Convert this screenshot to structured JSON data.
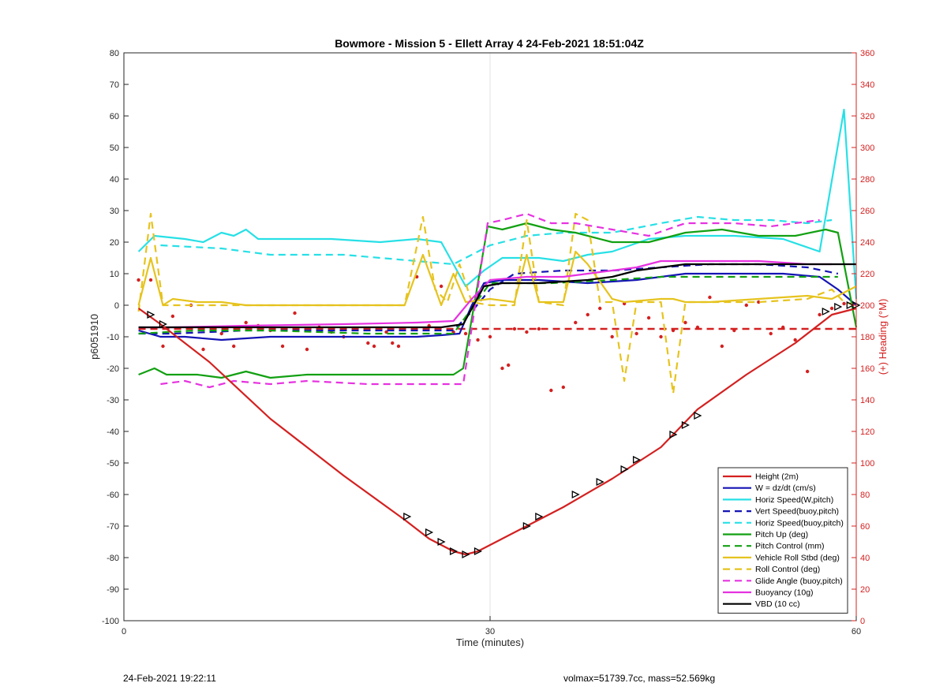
{
  "chart_data": {
    "type": "line",
    "title": "Bowmore - Mission 5 - Ellett Array 4 24-Feb-2021 18:51:04Z",
    "xlabel": "Time (minutes)",
    "ylabel": "p6051910",
    "y2label": "(+) Heading (°M)",
    "xlim": [
      0,
      60
    ],
    "ylim": [
      -100,
      80
    ],
    "y2lim": [
      0,
      360
    ],
    "xticks": [
      0,
      30,
      60
    ],
    "yticks": [
      80,
      70,
      60,
      50,
      40,
      30,
      20,
      10,
      0,
      -10,
      -20,
      -30,
      -40,
      -50,
      -60,
      -70,
      -80,
      -90,
      -100
    ],
    "y2ticks": [
      360,
      340,
      320,
      300,
      280,
      260,
      240,
      220,
      200,
      180,
      160,
      140,
      120,
      100,
      80,
      60,
      40,
      20,
      0
    ],
    "grid": "x at 30",
    "legend_position": "bottom-right",
    "series": [
      {
        "name": "Height (2m)",
        "color": "#d42020",
        "style": "solid",
        "x": [
          1.2,
          3,
          7,
          12,
          18,
          23,
          25,
          27,
          28,
          29,
          30,
          33,
          36,
          40,
          44,
          47,
          51,
          55,
          58,
          60
        ],
        "y": [
          -1,
          -6,
          -18,
          -36,
          -54,
          -68,
          -74,
          -78,
          -79,
          -78,
          -76,
          -70,
          -64,
          -55,
          -45,
          -33,
          -22,
          -12,
          -3,
          -1
        ]
      },
      {
        "name": "W = dz/dt (cm/s)",
        "color": "#1414b4",
        "style": "solid",
        "x": [
          1.2,
          3,
          5,
          8,
          12,
          18,
          24,
          26,
          27.5,
          28.5,
          29.5,
          31,
          34,
          38,
          42,
          46,
          50,
          54,
          57,
          58.5,
          60
        ],
        "y": [
          -8,
          -10,
          -10,
          -11,
          -10,
          -10,
          -10,
          -9.5,
          -9,
          0,
          7,
          8,
          8,
          7,
          8,
          10,
          10,
          10,
          9,
          5,
          0
        ]
      },
      {
        "name": "Horiz Speed(W,pitch)",
        "color": "#27e0e6",
        "style": "solid",
        "x": [
          1.2,
          2.5,
          5,
          6.5,
          8,
          9,
          10,
          11,
          14,
          17,
          21,
          24,
          26,
          28,
          29.5,
          31,
          34,
          36,
          38,
          40,
          43,
          46,
          50,
          54,
          57,
          59,
          60
        ],
        "y": [
          17,
          22,
          21,
          20,
          23,
          22,
          24,
          21,
          21,
          21,
          20,
          21,
          20,
          6,
          11,
          15,
          15,
          14,
          16,
          17,
          21,
          22,
          22,
          21,
          17,
          62,
          2
        ]
      },
      {
        "name": "Vert Speed(buoy,pitch)",
        "color": "#1414b4",
        "style": "dashed",
        "x": [
          1.2,
          4,
          10,
          20,
          27,
          28.5,
          30,
          32,
          36,
          40,
          44,
          48,
          52,
          56,
          58.5
        ],
        "y": [
          -9,
          -9,
          -8,
          -8,
          -8,
          -2,
          5,
          10,
          11,
          11,
          12,
          13,
          13,
          12,
          10
        ]
      },
      {
        "name": "Horiz Speed(buoy,pitch)",
        "color": "#27e0e6",
        "style": "dashed",
        "x": [
          3,
          8,
          12,
          18,
          24,
          27,
          30,
          33,
          36,
          40,
          44,
          47,
          50,
          53,
          56,
          58
        ],
        "y": [
          19,
          18,
          16,
          16,
          14,
          13,
          19,
          22,
          23,
          23,
          26,
          28,
          27,
          27,
          26,
          27
        ]
      },
      {
        "name": "Pitch Up (deg)",
        "color": "#12a012",
        "style": "solid",
        "x": [
          1.2,
          2.5,
          3.5,
          6,
          8,
          10,
          12,
          15,
          18,
          22,
          27,
          27.8,
          29.8,
          31,
          33,
          35,
          37,
          40,
          43,
          46,
          49,
          52,
          55,
          57.5,
          58.5,
          60
        ],
        "y": [
          -22,
          -20,
          -22,
          -22,
          -23,
          -21,
          -23,
          -22,
          -22,
          -22,
          -22,
          -20,
          25,
          24,
          26,
          24,
          23,
          20,
          20,
          23,
          24,
          22,
          22,
          24,
          23,
          -7
        ]
      },
      {
        "name": "Pitch Control (mm)",
        "color": "#12a012",
        "style": "dashed",
        "x": [
          1.2,
          6,
          12,
          20,
          27,
          28.5,
          30,
          35,
          40,
          44,
          50,
          55,
          58.5
        ],
        "y": [
          -9,
          -8,
          -8,
          -9,
          -9,
          -1,
          7,
          7,
          8,
          9,
          9,
          9,
          9
        ]
      },
      {
        "name": "Vehicle Roll Stbd (deg)",
        "color": "#e6c31e",
        "style": "solid",
        "x": [
          1.2,
          2.2,
          3.2,
          4,
          6,
          8,
          10,
          12,
          15,
          18,
          22,
          23,
          24.5,
          26,
          27,
          28,
          30,
          32,
          33,
          34,
          36,
          37,
          38,
          40,
          41,
          44,
          45,
          46,
          48,
          52,
          56,
          58,
          60
        ],
        "y": [
          0,
          15,
          0,
          2,
          1,
          1,
          0,
          0,
          0,
          0,
          0,
          0,
          16,
          0,
          10,
          1,
          2,
          1,
          16,
          1,
          1,
          17,
          13,
          2,
          1,
          2,
          2,
          1,
          1,
          2,
          3,
          2,
          6
        ]
      },
      {
        "name": "Roll Control (deg)",
        "color": "#e6c31e",
        "style": "dashed",
        "x": [
          1.2,
          2.2,
          3.2,
          5,
          8,
          12,
          18,
          22,
          23,
          24.5,
          25.5,
          26.5,
          27.5,
          28.5,
          30,
          32,
          33,
          34,
          36,
          37,
          38,
          39,
          40,
          41,
          42,
          44,
          45,
          46,
          48,
          52,
          56,
          58,
          59,
          60
        ],
        "y": [
          -2,
          29,
          0,
          0,
          0,
          0,
          0,
          0,
          0,
          28,
          5,
          1,
          13,
          1,
          0,
          0,
          27,
          1,
          0,
          29,
          27,
          1,
          1,
          -24,
          1,
          1,
          -28,
          1,
          1,
          1,
          2,
          5,
          1,
          0
        ]
      },
      {
        "name": "Glide Angle (buoy,pitch)",
        "color": "#e632e0",
        "style": "dashed",
        "x": [
          3,
          5,
          7,
          9,
          12,
          15,
          20,
          25,
          27.8,
          29.8,
          31,
          33,
          35,
          37,
          40,
          43,
          46,
          50,
          53,
          57
        ],
        "y": [
          -25,
          -24,
          -26,
          -24,
          -25,
          -24,
          -25,
          -25,
          -25,
          26,
          27,
          29,
          26,
          26,
          24,
          22,
          26,
          26,
          25,
          27
        ]
      },
      {
        "name": "Buoyancy (10g)",
        "color": "#e632e0",
        "style": "solid",
        "x": [
          1.2,
          4,
          10,
          18,
          24,
          27,
          28.5,
          30,
          33,
          36,
          38,
          40,
          42,
          44,
          48,
          52,
          56,
          58
        ],
        "y": [
          -7,
          -7,
          -6.5,
          -6,
          -5.5,
          -5,
          2,
          8,
          9,
          9,
          10,
          11,
          12,
          14,
          14,
          14,
          13,
          13
        ]
      },
      {
        "name": "VBD (10 cc)",
        "color": "#000000",
        "style": "solid",
        "x": [
          1.2,
          4,
          10,
          20,
          26,
          27.8,
          29.5,
          31,
          34,
          38,
          40,
          42,
          44,
          46,
          50,
          56,
          60
        ],
        "y": [
          -7,
          -7,
          -7,
          -7,
          -7,
          -6,
          6,
          7,
          7,
          8,
          9,
          11,
          12,
          13,
          13,
          13,
          13
        ]
      }
    ],
    "reference_line": {
      "axis": "y2",
      "value": 185,
      "color": "#d42020",
      "style": "dashed",
      "x": [
        1.2,
        60
      ]
    },
    "heading_points": {
      "axis": "y2",
      "color": "#d42020",
      "x": [
        1.2,
        2.2,
        3.2,
        4,
        5.5,
        6.5,
        8,
        9,
        10,
        11,
        12,
        13,
        14,
        15,
        16,
        17,
        18,
        19,
        20,
        20.5,
        21.5,
        22,
        22.5,
        24,
        25,
        26,
        27,
        28,
        29,
        30,
        31,
        31.5,
        32,
        33,
        34,
        35,
        36,
        37,
        38,
        39,
        40,
        41,
        42,
        43,
        44,
        45,
        46,
        47,
        48,
        49,
        50,
        51,
        52,
        53,
        54,
        55,
        56,
        57,
        58,
        59
      ],
      "y": [
        216,
        216,
        174,
        193,
        200,
        172,
        182,
        174,
        189,
        187,
        184,
        174,
        195,
        172,
        186,
        183,
        180,
        185,
        176,
        174,
        183,
        176,
        174,
        218,
        187,
        212,
        183,
        182,
        178,
        180,
        160,
        162,
        185,
        183,
        185,
        146,
        148,
        189,
        194,
        198,
        180,
        201,
        182,
        192,
        180,
        184,
        189,
        186,
        205,
        174,
        184,
        200,
        202,
        182,
        186,
        178,
        158,
        194,
        198,
        201
      ]
    },
    "triangle_markers": {
      "x": [
        2.2,
        3.2,
        23.2,
        25,
        26,
        27,
        28,
        29,
        33,
        34,
        37,
        39,
        41,
        42,
        45,
        46,
        47,
        57.5,
        58.5,
        59.5,
        60
      ],
      "y": [
        -3,
        -6,
        -67,
        -72,
        -75,
        -78,
        -79,
        -78,
        -70,
        -67,
        -60,
        -56,
        -52,
        -49,
        -41,
        -38,
        -35,
        -2,
        -0.5,
        0,
        0
      ]
    }
  },
  "footer": {
    "left_text": "24-Feb-2021 19:22:11",
    "right_text": "volmax=51739.7cc, mass=52.569kg"
  }
}
